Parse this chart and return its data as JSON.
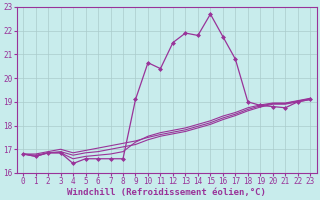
{
  "title": "",
  "xlabel": "Windchill (Refroidissement éolien,°C)",
  "ylabel": "",
  "bg_color": "#c8ecec",
  "line_color": "#993399",
  "xlim": [
    -0.5,
    23.5
  ],
  "ylim": [
    16,
    23
  ],
  "yticks": [
    16,
    17,
    18,
    19,
    20,
    21,
    22,
    23
  ],
  "xticks": [
    0,
    1,
    2,
    3,
    4,
    5,
    6,
    7,
    8,
    9,
    10,
    11,
    12,
    13,
    14,
    15,
    16,
    17,
    18,
    19,
    20,
    21,
    22,
    23
  ],
  "x": [
    0,
    1,
    2,
    3,
    4,
    5,
    6,
    7,
    8,
    9,
    10,
    11,
    12,
    13,
    14,
    15,
    16,
    17,
    18,
    19,
    20,
    21,
    22,
    23
  ],
  "y_main": [
    16.8,
    16.7,
    16.85,
    16.85,
    16.4,
    16.6,
    16.6,
    16.6,
    16.6,
    19.1,
    20.65,
    20.4,
    21.5,
    21.9,
    21.8,
    22.7,
    21.75,
    20.8,
    19.0,
    18.85,
    18.8,
    18.75,
    19.0,
    19.1
  ],
  "y_line2": [
    16.8,
    16.7,
    16.85,
    16.85,
    16.6,
    16.7,
    16.75,
    16.8,
    16.9,
    17.3,
    17.55,
    17.7,
    17.8,
    17.9,
    18.05,
    18.2,
    18.4,
    18.55,
    18.75,
    18.87,
    18.95,
    18.95,
    19.05,
    19.15
  ],
  "y_line3": [
    16.8,
    16.75,
    16.85,
    16.9,
    16.75,
    16.85,
    16.9,
    17.0,
    17.1,
    17.2,
    17.4,
    17.55,
    17.65,
    17.75,
    17.9,
    18.05,
    18.25,
    18.42,
    18.62,
    18.78,
    18.9,
    18.9,
    19.0,
    19.1
  ],
  "y_line4": [
    16.8,
    16.8,
    16.9,
    17.0,
    16.85,
    16.95,
    17.05,
    17.15,
    17.25,
    17.35,
    17.5,
    17.62,
    17.72,
    17.82,
    17.97,
    18.12,
    18.32,
    18.48,
    18.68,
    18.83,
    18.93,
    18.93,
    19.03,
    19.13
  ],
  "grid_color": "#aacccc",
  "tick_fontsize": 5.5,
  "xlabel_fontsize": 6.5
}
